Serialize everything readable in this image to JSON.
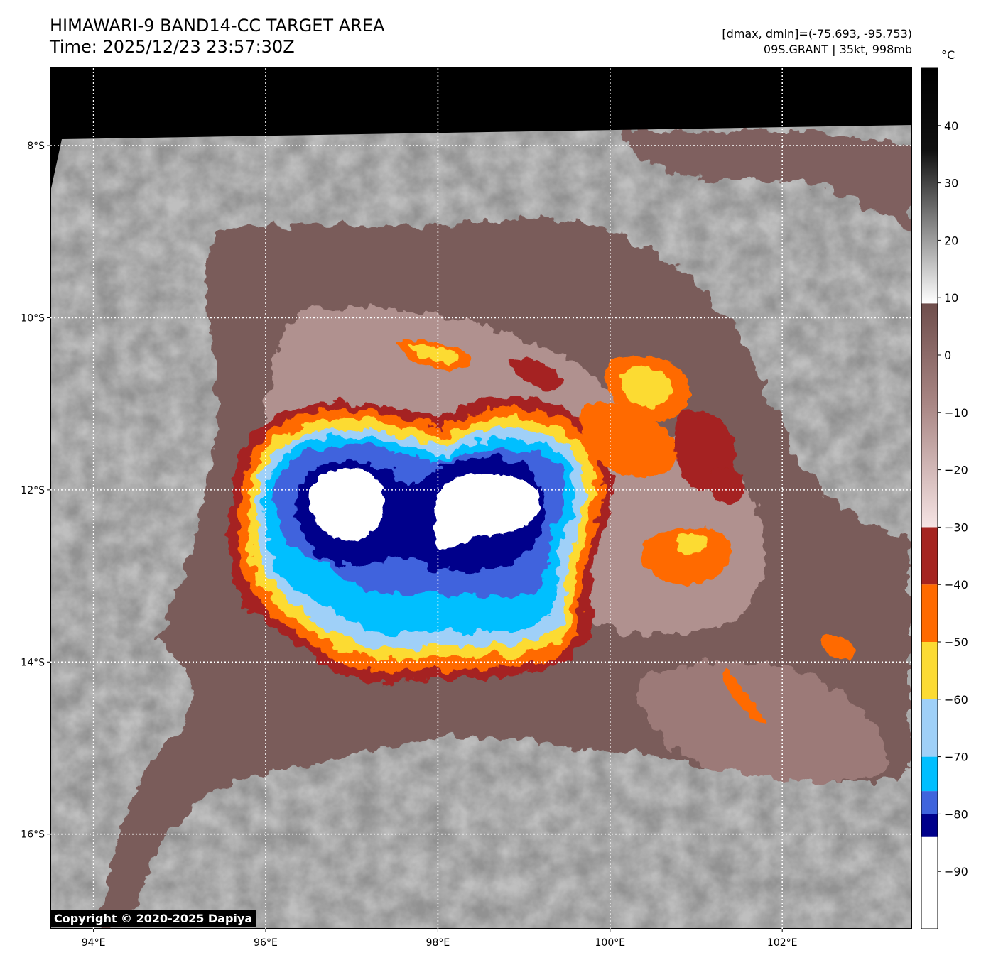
{
  "header": {
    "title_line1": "HIMAWARI-9 BAND14-CC TARGET AREA",
    "title_line2": "Time: 2025/12/23 23:57:30Z",
    "dminmax": "[dmax, dmin]=(-75.693, -95.753)",
    "storm": "09S.GRANT | 35kt, 998mb"
  },
  "map": {
    "lat_labels": [
      "8°S",
      "10°S",
      "12°S",
      "14°S",
      "16°S"
    ],
    "lon_labels": [
      "94°E",
      "96°E",
      "98°E",
      "100°E",
      "102°E"
    ],
    "lat_values": [
      -8,
      -10,
      -12,
      -14,
      -16
    ],
    "lon_values": [
      94,
      96,
      98,
      100,
      102
    ],
    "lon_range": [
      93.5,
      103.5
    ],
    "lat_range": [
      -7.1,
      -17.1
    ],
    "grid": true
  },
  "colorbar": {
    "unit": "°C",
    "ticks": [
      "40",
      "30",
      "20",
      "10",
      "0",
      "−10",
      "−20",
      "−30",
      "−40",
      "−50",
      "−60",
      "−70",
      "−80",
      "−90"
    ],
    "tick_values": [
      40,
      30,
      20,
      10,
      0,
      -10,
      -20,
      -30,
      -40,
      -50,
      -60,
      -70,
      -80,
      -90
    ],
    "range": [
      -100,
      50
    ],
    "color_stops": [
      {
        "from": -100,
        "to": -84,
        "color": "#ffffff"
      },
      {
        "from": -84,
        "to": -80,
        "color": "#00008b"
      },
      {
        "from": -80,
        "to": -76,
        "color": "#3f64dd"
      },
      {
        "from": -76,
        "to": -70,
        "color": "#00bfff"
      },
      {
        "from": -70,
        "to": -60,
        "color": "#9fd0f8"
      },
      {
        "from": -60,
        "to": -50,
        "color": "#fcdb33"
      },
      {
        "from": -50,
        "to": -40,
        "color": "#ff6a00"
      },
      {
        "from": -40,
        "to": -30,
        "color": "#a52420"
      },
      {
        "from": -30,
        "to": 9,
        "color": "gradient-pink-brown"
      },
      {
        "from": 9,
        "to": 50,
        "color": "gradient-white-black"
      }
    ]
  },
  "footer": {
    "copyright": "Copyright © 2020-2025 Dapiya"
  }
}
